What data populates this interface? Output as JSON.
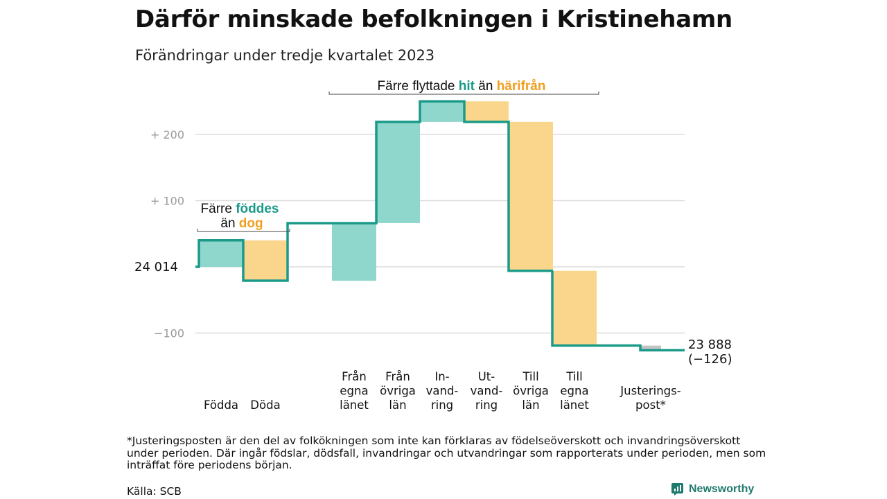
{
  "title": "Därför minskade befolkningen i Kristinehamn",
  "subtitle": "Förändringar under tredje kvartalet 2023",
  "footnote": "*Justeringsposten är den del av folkökningen som inte kan förklaras av födelseöverskott och invandringsöverskott under perioden. Där ingår födslar, dödsfall, invandringar och utvandringar som rapporterats under perioden, men som inträffat före periodens början.",
  "source": "Källa: SCB",
  "brand": "Newsworthy",
  "annotations": {
    "births_deaths": {
      "line1": "Färre",
      "line1_colored": "föddes",
      "line2": "än",
      "line2_colored": "dog"
    },
    "migration": {
      "prefix": "Färre flyttade",
      "hit": "hit",
      "middle": "än",
      "harifran": "härifrån"
    }
  },
  "start_label": "24  014",
  "end_label": {
    "value": "23 888",
    "change": "(−126)"
  },
  "colors": {
    "increase": "#8fd6cc",
    "decrease": "#fad68c",
    "line": "#1a9a88",
    "adjustment": "#c4c4c4",
    "grid": "#dcdcdc"
  },
  "chart_data": {
    "type": "waterfall",
    "title": "Därför minskade befolkningen i Kristinehamn",
    "subtitle": "Förändringar under tredje kvartalet 2023",
    "start_value": 24014,
    "end_value": 23888,
    "total_change": -126,
    "y_axis_relative_to_start": true,
    "yticks": [
      {
        "value": 200,
        "label": "+  200"
      },
      {
        "value": 100,
        "label": "+  100"
      },
      {
        "value": 0,
        "label": ""
      },
      {
        "value": -100,
        "label": "−100"
      }
    ],
    "ylim": [
      -130,
      260
    ],
    "steps": [
      {
        "lines": [
          "Födda"
        ],
        "change": 40,
        "kind": "increase"
      },
      {
        "lines": [
          "Döda"
        ],
        "change": -61,
        "kind": "decrease"
      },
      {
        "lines": [
          "Från",
          "egna",
          "länet"
        ],
        "change": 87,
        "kind": "increase"
      },
      {
        "lines": [
          "Från",
          "övriga",
          "län"
        ],
        "change": 153,
        "kind": "increase"
      },
      {
        "lines": [
          "In-",
          "vand-",
          "ring"
        ],
        "change": 31,
        "kind": "increase"
      },
      {
        "lines": [
          "Ut-",
          "vand-",
          "ring"
        ],
        "change": -31,
        "kind": "decrease"
      },
      {
        "lines": [
          "Till",
          "övriga",
          "län"
        ],
        "change": -225,
        "kind": "decrease"
      },
      {
        "lines": [
          "Till",
          "egna",
          "länet"
        ],
        "change": -113,
        "kind": "decrease"
      },
      {
        "lines": [
          "Justerings-",
          "post*"
        ],
        "change": -7,
        "kind": "adjustment"
      }
    ]
  }
}
